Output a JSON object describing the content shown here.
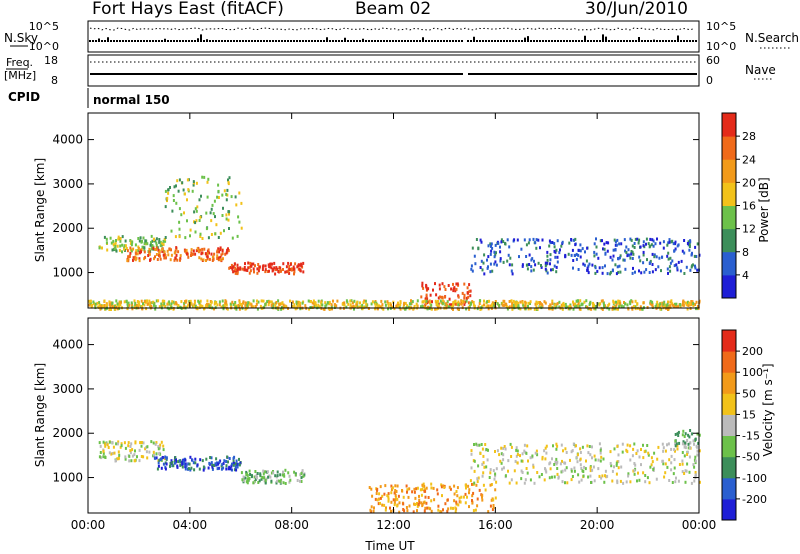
{
  "header": {
    "station": "Fort Hays East (fitACF)",
    "beam": "Beam 02",
    "date": "30/Jun/2010"
  },
  "top_panels": {
    "nsky_label": "N.Sky",
    "nsearch_label": "N.Search",
    "log_ticks": [
      "10^5",
      "10^0"
    ],
    "freq_label_1": "Freq.",
    "freq_label_2": "[MHz]",
    "freq_ticks": [
      "18",
      "8"
    ],
    "nave_label": "Nave",
    "nave_ticks": [
      "60",
      "0"
    ],
    "cpid_label": "CPID",
    "cpid_value": "normal 150"
  },
  "colors": {
    "power": [
      "#1f1fd6",
      "#2a5fd0",
      "#3c8e5a",
      "#6cc14a",
      "#f2c21a",
      "#f29a1a",
      "#f06a1a",
      "#e42b1a"
    ],
    "velocity": [
      "#1f1fd6",
      "#2a5fd0",
      "#3c8e5a",
      "#6cc14a",
      "#bbbbbb",
      "#f2c21a",
      "#f29a1a",
      "#f06a1a",
      "#e42b1a"
    ]
  },
  "chart_data": [
    {
      "type": "heatmap",
      "name": "power",
      "xlabel": "",
      "ylabel": "Slant Range [km]",
      "xlim": [
        0,
        24
      ],
      "ylim": [
        200,
        4600
      ],
      "yticks": [
        "1000",
        "2000",
        "3000",
        "4000"
      ],
      "xticks": [
        "00:00",
        "04:00",
        "08:00",
        "12:00",
        "16:00",
        "20:00",
        "00:00"
      ],
      "colorbar_label": "Power [dB]",
      "colorbar_ticks": [
        "28",
        "24",
        "20",
        "16",
        "12",
        "8",
        "4"
      ],
      "regions": [
        {
          "t0": 0.4,
          "t1": 3.0,
          "r0": 1500,
          "r1": 1850,
          "level": 3
        },
        {
          "t0": 1.5,
          "t1": 5.5,
          "r0": 1300,
          "r1": 1600,
          "level": 6
        },
        {
          "t0": 5.5,
          "t1": 8.5,
          "r0": 1000,
          "r1": 1250,
          "level": 7
        },
        {
          "t0": 3.0,
          "t1": 6.0,
          "r0": 1800,
          "r1": 3200,
          "level": 3
        },
        {
          "t0": 13.0,
          "t1": 15.0,
          "r0": 300,
          "r1": 800,
          "level": 7
        },
        {
          "t0": 15.0,
          "t1": 24.0,
          "r0": 1000,
          "r1": 1800,
          "level": 1
        },
        {
          "t0": 0.0,
          "t1": 24.0,
          "r0": 200,
          "r1": 400,
          "level": 4
        }
      ]
    },
    {
      "type": "heatmap",
      "name": "velocity",
      "xlabel": "Time UT",
      "ylabel": "Slant Range [km]",
      "xlim": [
        0,
        24
      ],
      "ylim": [
        200,
        4600
      ],
      "yticks": [
        "1000",
        "2000",
        "3000",
        "4000"
      ],
      "xticks": [
        "00:00",
        "04:00",
        "08:00",
        "12:00",
        "16:00",
        "20:00",
        "00:00"
      ],
      "colorbar_label": "Velocity [m s⁻¹]",
      "colorbar_ticks": [
        "200",
        "100",
        "50",
        "15",
        "-15",
        "-50",
        "-100",
        "-200"
      ],
      "regions": [
        {
          "t0": 0.4,
          "t1": 3.0,
          "r0": 1400,
          "r1": 1850,
          "level": 4
        },
        {
          "t0": 2.5,
          "t1": 6.0,
          "r0": 1200,
          "r1": 1500,
          "level": 1
        },
        {
          "t0": 6.0,
          "t1": 8.5,
          "r0": 900,
          "r1": 1200,
          "level": 3
        },
        {
          "t0": 11.0,
          "t1": 16.0,
          "r0": 250,
          "r1": 900,
          "level": 6
        },
        {
          "t0": 15.0,
          "t1": 24.0,
          "r0": 900,
          "r1": 1800,
          "level": 4
        },
        {
          "t0": 23.0,
          "t1": 24.0,
          "r0": 1700,
          "r1": 2100,
          "level": 3
        }
      ]
    }
  ]
}
